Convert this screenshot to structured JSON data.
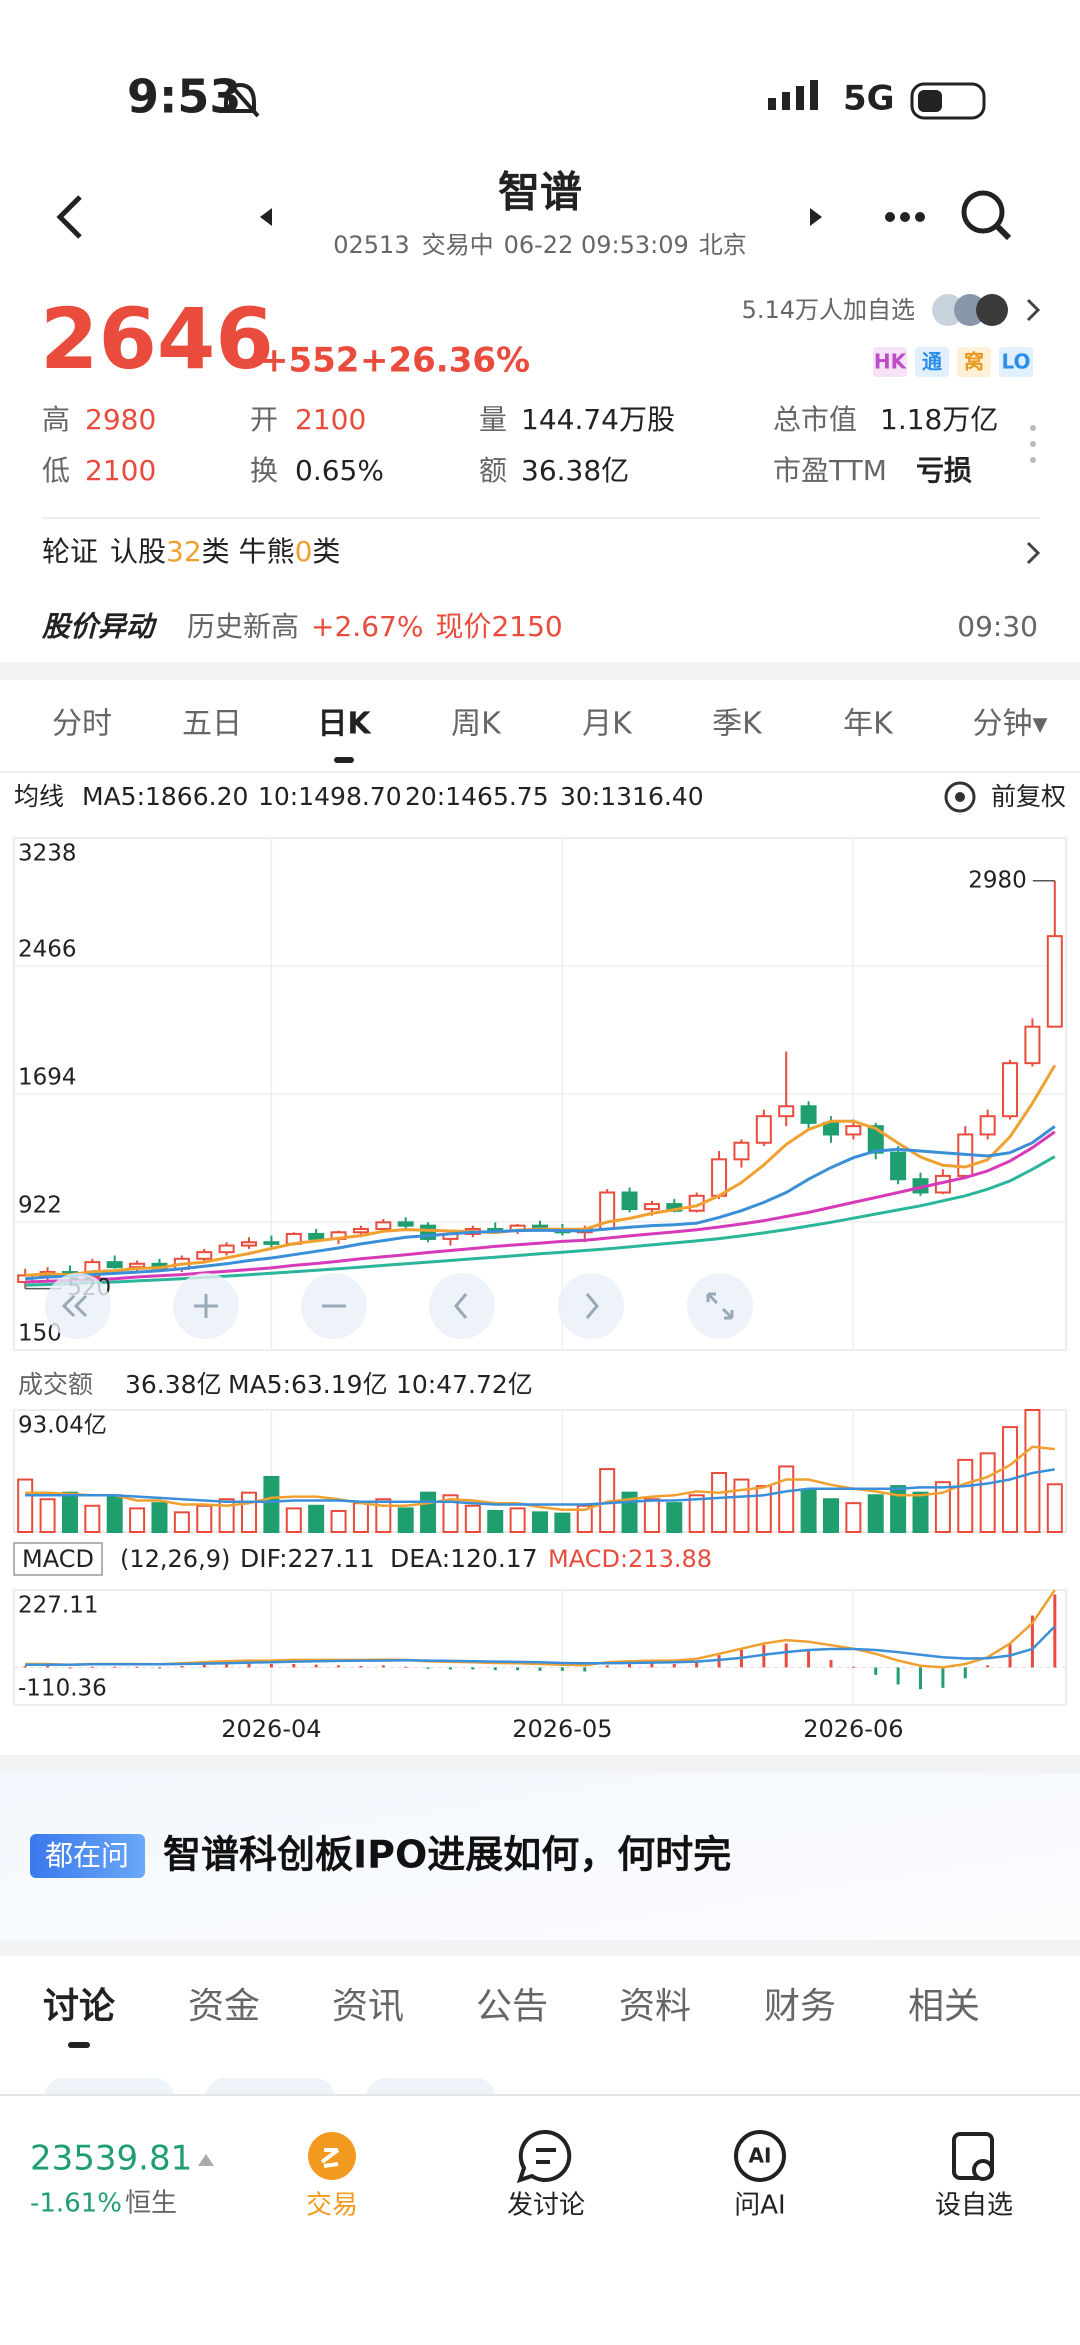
{
  "status_bar": {
    "time": "9:53",
    "network": "5G"
  },
  "header": {
    "title": "智谱",
    "code": "02513",
    "status": "交易中",
    "datetime": "06-22 09:53:09",
    "city": "北京"
  },
  "quote": {
    "price": "2646",
    "change": "+552",
    "change_pct": "+26.36%",
    "followers": "5.14万人加自选",
    "tags": [
      "HK",
      "通",
      "窝",
      "LO"
    ]
  },
  "stats": [
    {
      "label": "高",
      "value": "2980"
    },
    {
      "label": "开",
      "value": "2100"
    },
    {
      "label": "量",
      "value": "144.74万股"
    },
    {
      "label": "总市值",
      "value": "1.18万亿"
    },
    {
      "label": "低",
      "value": "2100"
    },
    {
      "label": "换",
      "value": "0.65%"
    },
    {
      "label": "额",
      "value": "36.38亿"
    },
    {
      "label": "市盈TTM",
      "value": "亏损"
    }
  ],
  "warrants": {
    "label": "轮证",
    "parts": [
      "认股",
      "32",
      "类 牛熊",
      "0",
      "类"
    ]
  },
  "alert": {
    "title": "股价异动",
    "text": "历史新高",
    "pct": "+2.67%",
    "price": "现价2150",
    "time": "09:30"
  },
  "period_tabs": [
    "分时",
    "五日",
    "日K",
    "周K",
    "月K",
    "季K",
    "年K",
    "分钟▾"
  ],
  "ma_label": "均线",
  "adjust": "前复权",
  "chart_data": [
    {
      "type": "candlestick",
      "up_color": "#e94b3c",
      "down_color": "#1f9e6e",
      "candles": [
        [
          560,
          640,
          520,
          600
        ],
        [
          600,
          650,
          570,
          620
        ],
        [
          620,
          660,
          580,
          590
        ],
        [
          590,
          700,
          580,
          680
        ],
        [
          680,
          720,
          640,
          650
        ],
        [
          650,
          690,
          620,
          670
        ],
        [
          670,
          700,
          630,
          640
        ],
        [
          640,
          720,
          620,
          700
        ],
        [
          700,
          760,
          680,
          740
        ],
        [
          740,
          800,
          720,
          780
        ],
        [
          780,
          830,
          760,
          800
        ],
        [
          800,
          840,
          770,
          790
        ],
        [
          790,
          860,
          780,
          850
        ],
        [
          850,
          880,
          800,
          820
        ],
        [
          820,
          870,
          790,
          860
        ],
        [
          860,
          900,
          830,
          880
        ],
        [
          880,
          940,
          860,
          920
        ],
        [
          920,
          950,
          880,
          900
        ],
        [
          900,
          920,
          800,
          820
        ],
        [
          820,
          860,
          780,
          850
        ],
        [
          850,
          900,
          830,
          880
        ],
        [
          880,
          920,
          850,
          870
        ],
        [
          870,
          910,
          850,
          900
        ],
        [
          900,
          930,
          870,
          880
        ],
        [
          880,
          910,
          840,
          860
        ],
        [
          860,
          900,
          800,
          880
        ],
        [
          880,
          1120,
          870,
          1100
        ],
        [
          1100,
          1130,
          980,
          1000
        ],
        [
          1000,
          1050,
          960,
          1030
        ],
        [
          1030,
          1060,
          980,
          990
        ],
        [
          990,
          1100,
          980,
          1080
        ],
        [
          1080,
          1350,
          1060,
          1300
        ],
        [
          1300,
          1420,
          1250,
          1400
        ],
        [
          1400,
          1600,
          1380,
          1560
        ],
        [
          1560,
          1950,
          1500,
          1620
        ],
        [
          1620,
          1650,
          1480,
          1520
        ],
        [
          1520,
          1560,
          1400,
          1450
        ],
        [
          1450,
          1540,
          1420,
          1500
        ],
        [
          1500,
          1520,
          1300,
          1340
        ],
        [
          1340,
          1380,
          1150,
          1180
        ],
        [
          1180,
          1220,
          1080,
          1100
        ],
        [
          1100,
          1240,
          1090,
          1200
        ],
        [
          1200,
          1500,
          1180,
          1450
        ],
        [
          1450,
          1600,
          1420,
          1560
        ],
        [
          1560,
          1900,
          1540,
          1880
        ],
        [
          1880,
          2150,
          1860,
          2100
        ],
        [
          2100,
          2980,
          2100,
          2646
        ]
      ],
      "series": [
        {
          "name": "MA5:1866.20",
          "color": "#f0a030",
          "values": [
            600,
            610,
            603,
            623,
            628,
            642,
            646,
            668,
            680,
            706,
            732,
            762,
            792,
            808,
            824,
            840,
            866,
            876,
            872,
            868,
            864,
            858,
            872,
            880,
            878,
            878,
            922,
            944,
            974,
            996,
            1020,
            1080,
            1160,
            1266,
            1390,
            1480,
            1530,
            1530,
            1486,
            1398,
            1314,
            1264,
            1254,
            1298,
            1436,
            1638,
            1866.2
          ]
        },
        {
          "name": "10:1498.70",
          "color": "#3a8fd8",
          "values": [
            580,
            590,
            595,
            605,
            612,
            620,
            628,
            640,
            655,
            670,
            690,
            705,
            725,
            745,
            765,
            790,
            810,
            830,
            840,
            850,
            860,
            865,
            870,
            872,
            870,
            868,
            880,
            890,
            900,
            905,
            915,
            950,
            990,
            1040,
            1100,
            1180,
            1250,
            1310,
            1350,
            1360,
            1350,
            1340,
            1330,
            1320,
            1340,
            1400,
            1498.7
          ]
        },
        {
          "name": "20:1465.75",
          "color": "#d63ab8",
          "values": [
            560,
            565,
            570,
            575,
            580,
            590,
            598,
            605,
            615,
            625,
            635,
            645,
            660,
            672,
            685,
            700,
            712,
            725,
            738,
            750,
            762,
            775,
            785,
            795,
            805,
            812,
            825,
            838,
            850,
            862,
            875,
            892,
            910,
            930,
            955,
            980,
            1010,
            1040,
            1070,
            1100,
            1130,
            1160,
            1190,
            1230,
            1290,
            1370,
            1465.75
          ]
        },
        {
          "name": "30:1316.40",
          "color": "#2bb59a",
          "values": [
            540,
            545,
            550,
            555,
            560,
            567,
            573,
            580,
            588,
            596,
            604,
            613,
            622,
            631,
            640,
            650,
            660,
            670,
            680,
            690,
            700,
            710,
            720,
            730,
            740,
            750,
            760,
            772,
            784,
            796,
            808,
            822,
            838,
            856,
            876,
            898,
            920,
            945,
            970,
            995,
            1020,
            1050,
            1080,
            1120,
            1170,
            1240,
            1316.4
          ]
        }
      ],
      "ylim": [
        150,
        3238
      ],
      "yticks": [
        150,
        922,
        1694,
        2466,
        3238
      ],
      "grid": true,
      "annotations": [
        "2980",
        "520"
      ]
    },
    {
      "type": "bar",
      "title": "成交额",
      "subtitle": "36.38亿",
      "values": [
        40,
        25,
        30,
        20,
        28,
        18,
        22,
        15,
        20,
        25,
        30,
        42,
        18,
        20,
        16,
        22,
        25,
        18,
        30,
        28,
        20,
        16,
        18,
        15,
        14,
        20,
        48,
        30,
        25,
        22,
        28,
        45,
        40,
        35,
        50,
        32,
        25,
        22,
        28,
        35,
        30,
        38,
        55,
        60,
        80,
        93.04,
        36.38
      ],
      "series": [
        {
          "name": "MA5:63.19亿",
          "color": "#f0a030",
          "values": [
            30,
            30,
            29,
            28,
            28,
            24,
            24,
            21,
            21,
            20,
            22,
            26,
            27,
            27,
            25,
            22,
            20,
            20,
            22,
            25,
            24,
            22,
            22,
            19,
            17,
            17,
            23,
            25,
            27,
            28,
            31,
            30,
            32,
            34,
            40,
            40,
            36,
            33,
            31,
            28,
            28,
            30,
            37,
            42,
            51,
            65,
            63.19
          ]
        },
        {
          "name": "10:47.72亿",
          "color": "#3a8fd8",
          "values": [
            28,
            28,
            28,
            28,
            28,
            27,
            26,
            25,
            24,
            23,
            23,
            23,
            24,
            24,
            24,
            23,
            23,
            23,
            23,
            23,
            22,
            21,
            21,
            21,
            21,
            21,
            22,
            23,
            24,
            24,
            25,
            26,
            27,
            28,
            31,
            33,
            33,
            33,
            33,
            33,
            34,
            34,
            35,
            37,
            40,
            45,
            47.72
          ]
        }
      ],
      "ylim": [
        0,
        93.04
      ],
      "yticks": [
        {
          "value": 93.04,
          "label": "93.04亿"
        }
      ]
    },
    {
      "type": "macd",
      "title": "MACD",
      "params": "(12,26,9)",
      "bar_name": "MACD:213.88",
      "up_color": "#e94b3c",
      "down_color": "#1f9e6e",
      "categories": [
        null,
        null,
        null,
        null,
        null,
        null,
        null,
        null,
        null,
        null,
        null,
        "2026-04",
        null,
        null,
        null,
        null,
        null,
        null,
        null,
        null,
        null,
        null,
        null,
        null,
        "2026-05",
        null,
        null,
        null,
        null,
        null,
        null,
        null,
        null,
        null,
        null,
        null,
        null,
        "2026-06",
        null,
        null,
        null,
        null,
        null,
        null,
        null,
        null,
        null
      ],
      "values": [
        4,
        4,
        0,
        2,
        2,
        2,
        0,
        4,
        8,
        12,
        12,
        10,
        10,
        8,
        6,
        4,
        6,
        2,
        -4,
        -6,
        -6,
        -8,
        -8,
        -10,
        -10,
        -12,
        6,
        10,
        12,
        10,
        16,
        36,
        54,
        66,
        70,
        48,
        22,
        2,
        -22,
        -50,
        -64,
        -60,
        -32,
        6,
        70,
        152,
        213.88
      ],
      "series": [
        {
          "name": "DIF:227.11",
          "color": "#f0a030",
          "values": [
            10,
            10,
            8,
            10,
            10,
            10,
            9,
            12,
            15,
            18,
            20,
            20,
            22,
            22,
            22,
            22,
            23,
            22,
            18,
            16,
            15,
            13,
            12,
            10,
            8,
            6,
            15,
            18,
            20,
            20,
            25,
            40,
            55,
            70,
            80,
            75,
            65,
            55,
            40,
            20,
            5,
            0,
            10,
            30,
            70,
            130,
            227.11
          ]
        },
        {
          "name": "DEA:120.17",
          "color": "#3a8fd8",
          "values": [
            8,
            8,
            8,
            9,
            9,
            9,
            9,
            10,
            11,
            12,
            14,
            15,
            17,
            18,
            19,
            20,
            20,
            21,
            20,
            19,
            18,
            17,
            16,
            15,
            13,
            12,
            12,
            13,
            14,
            15,
            17,
            22,
            28,
            37,
            45,
            51,
            54,
            54,
            51,
            45,
            37,
            30,
            26,
            27,
            35,
            54,
            120.17
          ]
        }
      ],
      "ylim": [
        -110.36,
        227.11
      ],
      "yticks": [
        -110.36,
        227.11
      ]
    }
  ],
  "ai_card": {
    "badge": "都在问",
    "question": "智谱科创板IPO进展如何，何时完"
  },
  "content_tabs": [
    "讨论",
    "资金",
    "资讯",
    "公告",
    "资料",
    "财务",
    "相关"
  ],
  "bottom_bar": {
    "index_value": "23539.81",
    "index_change": "-1.61%",
    "index_name": "恒生",
    "nav": [
      "交易",
      "发讨论",
      "问AI",
      "设自选"
    ],
    "ai_icon": "AI"
  }
}
